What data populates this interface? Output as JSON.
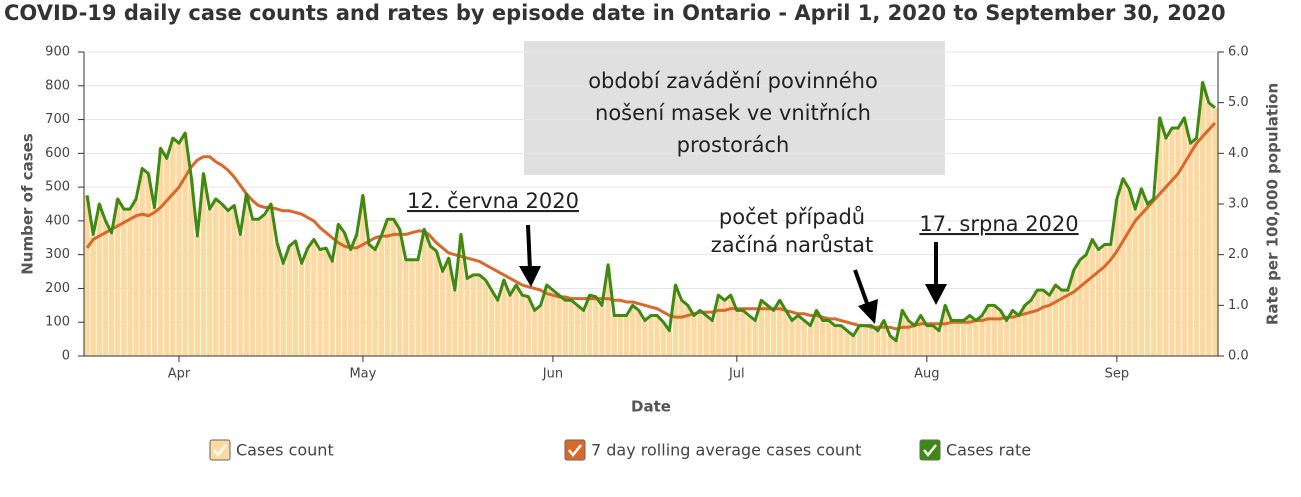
{
  "chart_data": {
    "type": "bar",
    "title": "COVID-19 daily case counts and rates by episode date in Ontario - April 1, 2020 to September 30, 2020",
    "x_label": "Date",
    "y_label": "Number of cases",
    "y2_label": "Rate per 100,000 population",
    "categories": [
      null,
      null,
      null,
      null,
      null,
      null,
      null,
      null,
      null,
      null,
      null,
      null,
      null,
      null,
      null,
      "Apr",
      null,
      null,
      null,
      null,
      null,
      null,
      null,
      null,
      null,
      null,
      null,
      null,
      null,
      null,
      null,
      null,
      null,
      null,
      null,
      null,
      null,
      null,
      null,
      null,
      null,
      null,
      null,
      null,
      null,
      "May",
      null,
      null,
      null,
      null,
      null,
      null,
      null,
      null,
      null,
      null,
      null,
      null,
      null,
      null,
      null,
      null,
      null,
      null,
      null,
      null,
      null,
      null,
      null,
      null,
      null,
      null,
      null,
      null,
      null,
      null,
      "Jun",
      null,
      null,
      null,
      null,
      null,
      null,
      null,
      null,
      null,
      null,
      null,
      null,
      null,
      null,
      null,
      null,
      null,
      null,
      null,
      null,
      null,
      null,
      null,
      null,
      null,
      null,
      null,
      null,
      null,
      "Jul",
      null,
      null,
      null,
      null,
      null,
      null,
      null,
      null,
      null,
      null,
      null,
      null,
      null,
      null,
      null,
      null,
      null,
      null,
      null,
      null,
      null,
      null,
      null,
      null,
      null,
      null,
      null,
      null,
      null,
      null,
      "Aug",
      null,
      null,
      null,
      null,
      null,
      null,
      null,
      null,
      null,
      null,
      null,
      null,
      null,
      null,
      null,
      null,
      null,
      null,
      null,
      null,
      null,
      null,
      null,
      null,
      null,
      null,
      null,
      null,
      null,
      null,
      "Sep",
      null,
      null,
      null,
      null,
      null,
      null,
      null,
      null,
      null,
      null,
      null,
      null,
      null,
      null,
      null,
      null
    ],
    "series": [
      {
        "name": "Cases count",
        "type": "bar",
        "color": "#fcd9a0",
        "values": [
          475,
          360,
          450,
          400,
          365,
          465,
          435,
          435,
          465,
          555,
          540,
          440,
          615,
          585,
          645,
          630,
          660,
          530,
          355,
          540,
          435,
          465,
          450,
          430,
          445,
          360,
          480,
          405,
          405,
          420,
          450,
          335,
          275,
          325,
          340,
          275,
          320,
          345,
          315,
          320,
          280,
          390,
          365,
          315,
          360,
          475,
          330,
          315,
          355,
          405,
          405,
          375,
          285,
          285,
          285,
          375,
          325,
          310,
          250,
          290,
          195,
          360,
          230,
          240,
          240,
          225,
          195,
          165,
          225,
          180,
          210,
          180,
          175,
          135,
          150,
          210,
          195,
          180,
          165,
          165,
          150,
          135,
          180,
          175,
          150,
          270,
          120,
          120,
          120,
          150,
          135,
          105,
          120,
          120,
          100,
          75,
          210,
          165,
          150,
          120,
          135,
          120,
          105,
          180,
          165,
          180,
          135,
          135,
          120,
          105,
          165,
          150,
          135,
          165,
          135,
          105,
          120,
          105,
          90,
          135,
          105,
          105,
          90,
          90,
          75,
          60,
          90,
          90,
          90,
          75,
          105,
          60,
          45,
          135,
          105,
          90,
          120,
          90,
          90,
          75,
          150,
          105,
          105,
          105,
          120,
          105,
          120,
          150,
          150,
          135,
          105,
          135,
          120,
          150,
          165,
          195,
          195,
          180,
          210,
          195,
          195,
          255,
          285,
          300,
          345,
          315,
          330,
          330,
          465,
          525,
          495,
          435,
          495,
          450,
          465,
          705,
          645,
          675,
          675,
          705,
          630,
          645,
          810,
          750,
          735
        ]
      },
      {
        "name": "7 day rolling average cases count",
        "type": "line",
        "color": "#d9682b",
        "values": [
          320,
          345,
          355,
          365,
          375,
          385,
          395,
          405,
          415,
          420,
          415,
          425,
          440,
          460,
          480,
          500,
          530,
          560,
          580,
          590,
          590,
          575,
          565,
          550,
          530,
          505,
          480,
          460,
          445,
          440,
          440,
          435,
          430,
          430,
          425,
          420,
          410,
          400,
          380,
          365,
          350,
          335,
          325,
          320,
          320,
          330,
          340,
          350,
          355,
          355,
          360,
          360,
          360,
          365,
          370,
          370,
          355,
          335,
          320,
          305,
          300,
          295,
          290,
          285,
          280,
          270,
          260,
          250,
          240,
          230,
          220,
          210,
          205,
          200,
          195,
          185,
          180,
          175,
          175,
          170,
          170,
          170,
          170,
          170,
          170,
          170,
          165,
          165,
          160,
          160,
          155,
          150,
          145,
          140,
          130,
          120,
          115,
          115,
          120,
          125,
          130,
          130,
          130,
          135,
          135,
          140,
          140,
          140,
          140,
          140,
          140,
          140,
          140,
          140,
          135,
          130,
          125,
          125,
          120,
          120,
          115,
          110,
          110,
          105,
          100,
          95,
          90,
          90,
          85,
          85,
          85,
          85,
          80,
          85,
          85,
          90,
          95,
          95,
          95,
          95,
          95,
          100,
          100,
          100,
          100,
          105,
          105,
          110,
          110,
          110,
          115,
          115,
          120,
          125,
          130,
          135,
          145,
          150,
          160,
          170,
          180,
          190,
          205,
          220,
          235,
          250,
          265,
          285,
          310,
          340,
          370,
          400,
          420,
          440,
          460,
          480,
          500,
          520,
          540,
          570,
          600,
          630,
          650,
          670,
          690
        ]
      },
      {
        "name": "Cases rate",
        "type": "line",
        "axis": "y2",
        "color": "#3d8a12",
        "values": [
          3.17,
          2.4,
          3,
          2.67,
          2.43,
          3.1,
          2.9,
          2.9,
          3.1,
          3.7,
          3.6,
          2.93,
          4.1,
          3.9,
          4.3,
          4.2,
          4.4,
          3.53,
          2.37,
          3.6,
          2.9,
          3.1,
          3,
          2.87,
          2.97,
          2.4,
          3.2,
          2.7,
          2.7,
          2.8,
          3,
          2.23,
          1.83,
          2.17,
          2.27,
          1.83,
          2.13,
          2.3,
          2.1,
          2.13,
          1.87,
          2.6,
          2.43,
          2.1,
          2.4,
          3.17,
          2.2,
          2.1,
          2.37,
          2.7,
          2.7,
          2.5,
          1.9,
          1.9,
          1.9,
          2.5,
          2.17,
          2.07,
          1.67,
          1.93,
          1.3,
          2.4,
          1.53,
          1.6,
          1.6,
          1.5,
          1.3,
          1.1,
          1.5,
          1.2,
          1.4,
          1.2,
          1.17,
          0.9,
          1,
          1.4,
          1.3,
          1.2,
          1.1,
          1.1,
          1,
          0.9,
          1.2,
          1.17,
          1,
          1.8,
          0.8,
          0.8,
          0.8,
          1,
          0.9,
          0.7,
          0.8,
          0.8,
          0.67,
          0.5,
          1.4,
          1.1,
          1,
          0.8,
          0.9,
          0.8,
          0.7,
          1.2,
          1.1,
          1.2,
          0.9,
          0.9,
          0.8,
          0.7,
          1.1,
          1,
          0.9,
          1.1,
          0.9,
          0.7,
          0.8,
          0.7,
          0.6,
          0.9,
          0.7,
          0.7,
          0.6,
          0.6,
          0.5,
          0.4,
          0.6,
          0.6,
          0.6,
          0.5,
          0.7,
          0.4,
          0.3,
          0.9,
          0.7,
          0.6,
          0.8,
          0.6,
          0.6,
          0.5,
          1,
          0.7,
          0.7,
          0.7,
          0.8,
          0.7,
          0.8,
          1,
          1,
          0.9,
          0.7,
          0.9,
          0.8,
          1,
          1.1,
          1.3,
          1.3,
          1.2,
          1.4,
          1.3,
          1.3,
          1.7,
          1.9,
          2,
          2.3,
          2.1,
          2.2,
          2.2,
          3.1,
          3.5,
          3.3,
          2.9,
          3.3,
          3,
          3.1,
          4.7,
          4.3,
          4.5,
          4.5,
          4.7,
          4.2,
          4.3,
          5.4,
          5,
          4.9
        ]
      }
    ],
    "ylim": [
      0,
      900
    ],
    "yticks": [
      0,
      100,
      200,
      300,
      400,
      500,
      600,
      700,
      800,
      900
    ],
    "y2lim": [
      0,
      6
    ],
    "y2ticks": [
      {
        "value": 0,
        "label": "0.0"
      },
      {
        "value": 1,
        "label": "1.0"
      },
      {
        "value": 2,
        "label": "2.0"
      },
      {
        "value": 3,
        "label": "3.0"
      },
      {
        "value": 4,
        "label": "4.0"
      },
      {
        "value": 5,
        "label": "5.0"
      },
      {
        "value": 6,
        "label": "6.0"
      }
    ],
    "grid": true,
    "legend": "bottom",
    "annotations": [
      {
        "lines": [
          "období zavádění povinného",
          "nošení masek ve vnitřních",
          "prostorách"
        ]
      },
      {
        "lines": [
          "12. června 2020"
        ]
      },
      {
        "lines": [
          "počet případů",
          "začíná narůstat"
        ]
      },
      {
        "lines": [
          "17. srpna 2020"
        ]
      }
    ]
  }
}
